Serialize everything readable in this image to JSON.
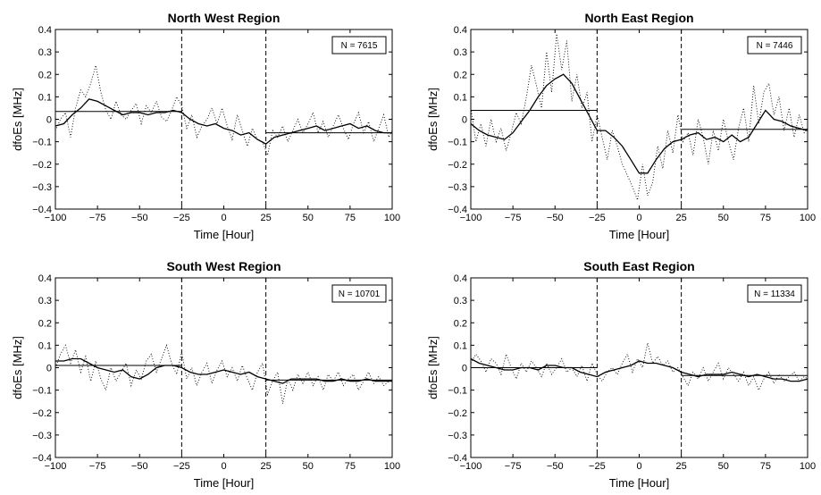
{
  "chart_data": [
    {
      "type": "line",
      "title": "North West Region",
      "xlabel": "Time [Hour]",
      "ylabel": "dfoEs [MHz]",
      "xlim": [
        -100,
        100
      ],
      "ylim": [
        -0.4,
        0.4
      ],
      "xticks": [
        "−100",
        "−75",
        "−50",
        "−25",
        "0",
        "25",
        "50",
        "75",
        "100"
      ],
      "yticks": [
        "0.4",
        "0.3",
        "0.2",
        "0.1",
        "0",
        "−0.1",
        "−0.2",
        "−0.3",
        "−0.4"
      ],
      "annotation": "N = 7615",
      "vlines": [
        -25,
        25
      ],
      "series": [
        {
          "style": "solid",
          "x": [
            -100,
            -95,
            -90,
            -85,
            -80,
            -75,
            -70,
            -65,
            -60,
            -55,
            -50,
            -45,
            -40,
            -35,
            -30,
            -25,
            -20,
            -15,
            -10,
            -5,
            0,
            5,
            10,
            15,
            20,
            25,
            30,
            35,
            40,
            45,
            50,
            55,
            60,
            65,
            70,
            75,
            80,
            85,
            90,
            95,
            100
          ],
          "y": [
            -0.03,
            -0.02,
            0.02,
            0.05,
            0.09,
            0.08,
            0.06,
            0.04,
            0.02,
            0.03,
            0.03,
            0.02,
            0.03,
            0.03,
            0.04,
            0.03,
            0.0,
            -0.02,
            -0.03,
            -0.02,
            -0.04,
            -0.05,
            -0.07,
            -0.06,
            -0.09,
            -0.11,
            -0.08,
            -0.07,
            -0.06,
            -0.05,
            -0.04,
            -0.03,
            -0.05,
            -0.04,
            -0.03,
            -0.02,
            -0.04,
            -0.03,
            -0.05,
            -0.06,
            -0.06
          ]
        },
        {
          "style": "dotted",
          "x": [
            -100,
            -97,
            -94,
            -91,
            -88,
            -85,
            -82,
            -79,
            -76,
            -73,
            -70,
            -67,
            -64,
            -61,
            -58,
            -55,
            -52,
            -49,
            -46,
            -43,
            -40,
            -37,
            -34,
            -31,
            -28,
            -25,
            -22,
            -19,
            -16,
            -13,
            -10,
            -7,
            -4,
            -1,
            2,
            5,
            8,
            11,
            14,
            17,
            20,
            23,
            26,
            29,
            32,
            35,
            38,
            41,
            44,
            47,
            50,
            53,
            56,
            59,
            62,
            65,
            68,
            71,
            74,
            77,
            80,
            83,
            86,
            89,
            92,
            95,
            98,
            100
          ],
          "y": [
            -0.05,
            0.0,
            0.03,
            -0.08,
            0.05,
            0.13,
            0.1,
            0.16,
            0.24,
            0.12,
            0.04,
            0.0,
            0.08,
            0.02,
            0.0,
            0.04,
            0.07,
            -0.02,
            0.06,
            0.03,
            0.08,
            0.01,
            -0.01,
            0.04,
            0.1,
            0.06,
            -0.04,
            0.02,
            -0.08,
            -0.03,
            0.0,
            0.05,
            -0.02,
            0.05,
            -0.03,
            -0.09,
            0.02,
            -0.05,
            -0.12,
            -0.04,
            -0.09,
            -0.1,
            -0.16,
            -0.05,
            -0.08,
            -0.03,
            -0.1,
            -0.05,
            0.0,
            -0.06,
            -0.02,
            0.03,
            -0.06,
            -0.01,
            -0.08,
            -0.03,
            0.02,
            -0.04,
            -0.09,
            -0.02,
            0.03,
            -0.06,
            -0.01,
            -0.1,
            -0.04,
            0.02,
            -0.08,
            -0.05
          ]
        }
      ],
      "means": [
        {
          "from": -100,
          "to": -25,
          "y": 0.035
        },
        {
          "from": 25,
          "to": 100,
          "y": -0.06
        }
      ]
    },
    {
      "type": "line",
      "title": "North East Region",
      "xlabel": "Time [Hour]",
      "ylabel": "dfoEs [MHz]",
      "xlim": [
        -100,
        100
      ],
      "ylim": [
        -0.4,
        0.4
      ],
      "xticks": [
        "−100",
        "−75",
        "−50",
        "−25",
        "0",
        "25",
        "50",
        "75",
        "100"
      ],
      "yticks": [
        "0.4",
        "0.3",
        "0.2",
        "0.1",
        "0",
        "−0.1",
        "−0.2",
        "−0.3",
        "−0.4"
      ],
      "annotation": "N = 7446",
      "vlines": [
        -25,
        25
      ],
      "series": [
        {
          "style": "solid",
          "x": [
            -100,
            -95,
            -90,
            -85,
            -80,
            -75,
            -70,
            -65,
            -60,
            -55,
            -50,
            -45,
            -40,
            -35,
            -30,
            -25,
            -20,
            -15,
            -10,
            -5,
            0,
            5,
            10,
            15,
            20,
            25,
            30,
            35,
            40,
            45,
            50,
            55,
            60,
            65,
            70,
            75,
            80,
            85,
            90,
            95,
            100
          ],
          "y": [
            -0.02,
            -0.05,
            -0.07,
            -0.08,
            -0.09,
            -0.06,
            -0.01,
            0.04,
            0.1,
            0.15,
            0.18,
            0.2,
            0.16,
            0.09,
            0.02,
            -0.05,
            -0.05,
            -0.08,
            -0.12,
            -0.18,
            -0.24,
            -0.24,
            -0.18,
            -0.13,
            -0.1,
            -0.09,
            -0.07,
            -0.06,
            -0.09,
            -0.08,
            -0.1,
            -0.07,
            -0.1,
            -0.08,
            -0.02,
            0.04,
            0.0,
            -0.01,
            -0.03,
            -0.04,
            -0.05
          ]
        },
        {
          "style": "dotted",
          "x": [
            -100,
            -97,
            -94,
            -91,
            -88,
            -85,
            -82,
            -79,
            -76,
            -73,
            -70,
            -67,
            -64,
            -61,
            -58,
            -55,
            -52,
            -49,
            -46,
            -43,
            -40,
            -37,
            -34,
            -31,
            -28,
            -25,
            -22,
            -19,
            -16,
            -13,
            -10,
            -7,
            -4,
            -1,
            2,
            5,
            8,
            11,
            14,
            17,
            20,
            23,
            26,
            29,
            32,
            35,
            38,
            41,
            44,
            47,
            50,
            53,
            56,
            59,
            62,
            65,
            68,
            71,
            74,
            77,
            80,
            83,
            86,
            89,
            92,
            95,
            98,
            100
          ],
          "y": [
            0.05,
            -0.1,
            -0.02,
            -0.12,
            0.0,
            -0.1,
            -0.04,
            -0.14,
            -0.06,
            0.03,
            -0.02,
            0.1,
            0.24,
            0.15,
            0.05,
            0.3,
            0.12,
            0.38,
            0.22,
            0.35,
            0.08,
            0.2,
            0.05,
            0.12,
            -0.1,
            0.02,
            -0.08,
            -0.18,
            -0.05,
            -0.12,
            -0.2,
            -0.25,
            -0.3,
            -0.36,
            -0.2,
            -0.34,
            -0.28,
            -0.12,
            -0.22,
            -0.05,
            -0.15,
            0.02,
            -0.1,
            -0.06,
            -0.16,
            0.0,
            -0.08,
            -0.2,
            -0.05,
            -0.14,
            0.0,
            -0.1,
            -0.18,
            -0.04,
            0.05,
            -0.1,
            0.15,
            -0.02,
            0.12,
            0.16,
            0.02,
            0.1,
            -0.05,
            0.05,
            -0.08,
            0.02,
            -0.06,
            -0.04
          ]
        }
      ],
      "means": [
        {
          "from": -100,
          "to": -25,
          "y": 0.04
        },
        {
          "from": 25,
          "to": 100,
          "y": -0.045
        }
      ]
    },
    {
      "type": "line",
      "title": "South West Region",
      "xlabel": "Time [Hour]",
      "ylabel": "dfoEs [MHz]",
      "xlim": [
        -100,
        100
      ],
      "ylim": [
        -0.4,
        0.4
      ],
      "xticks": [
        "−100",
        "−75",
        "−50",
        "−25",
        "0",
        "25",
        "50",
        "75",
        "100"
      ],
      "yticks": [
        "0.4",
        "0.3",
        "0.2",
        "0.1",
        "0",
        "−0.1",
        "−0.2",
        "−0.3",
        "−0.4"
      ],
      "annotation": "N = 10701",
      "vlines": [
        -25,
        25
      ],
      "series": [
        {
          "style": "solid",
          "x": [
            -100,
            -95,
            -90,
            -85,
            -80,
            -75,
            -70,
            -65,
            -60,
            -55,
            -50,
            -45,
            -40,
            -35,
            -30,
            -25,
            -20,
            -15,
            -10,
            -5,
            0,
            5,
            10,
            15,
            20,
            25,
            30,
            35,
            40,
            45,
            50,
            55,
            60,
            65,
            70,
            75,
            80,
            85,
            90,
            95,
            100
          ],
          "y": [
            0.03,
            0.03,
            0.04,
            0.04,
            0.02,
            0.0,
            -0.01,
            -0.02,
            -0.01,
            -0.04,
            -0.05,
            -0.03,
            0.0,
            0.01,
            0.01,
            0.0,
            -0.02,
            -0.03,
            -0.03,
            -0.02,
            -0.01,
            -0.02,
            -0.03,
            -0.02,
            -0.04,
            -0.05,
            -0.06,
            -0.07,
            -0.05,
            -0.05,
            -0.05,
            -0.05,
            -0.06,
            -0.06,
            -0.05,
            -0.06,
            -0.06,
            -0.05,
            -0.06,
            -0.06,
            -0.06
          ]
        },
        {
          "style": "dotted",
          "x": [
            -100,
            -97,
            -94,
            -91,
            -88,
            -85,
            -82,
            -79,
            -76,
            -73,
            -70,
            -67,
            -64,
            -61,
            -58,
            -55,
            -52,
            -49,
            -46,
            -43,
            -40,
            -37,
            -34,
            -31,
            -28,
            -25,
            -22,
            -19,
            -16,
            -13,
            -10,
            -7,
            -4,
            -1,
            2,
            5,
            8,
            11,
            14,
            17,
            20,
            23,
            26,
            29,
            32,
            35,
            38,
            41,
            44,
            47,
            50,
            53,
            56,
            59,
            62,
            65,
            68,
            71,
            74,
            77,
            80,
            83,
            86,
            89,
            92,
            95,
            98,
            100
          ],
          "y": [
            0.0,
            0.06,
            0.1,
            0.02,
            0.08,
            -0.02,
            0.05,
            -0.06,
            0.03,
            -0.05,
            -0.1,
            0.0,
            -0.06,
            -0.02,
            0.02,
            -0.08,
            -0.01,
            -0.05,
            0.03,
            0.06,
            -0.02,
            0.04,
            0.1,
            0.02,
            -0.03,
            0.07,
            -0.05,
            0.0,
            -0.08,
            -0.02,
            0.02,
            -0.07,
            -0.01,
            0.03,
            -0.04,
            0.0,
            -0.06,
            0.01,
            -0.05,
            -0.1,
            -0.02,
            0.02,
            -0.12,
            -0.06,
            -0.02,
            -0.16,
            -0.05,
            -0.1,
            -0.03,
            -0.07,
            -0.02,
            -0.08,
            -0.04,
            -0.1,
            -0.03,
            -0.06,
            -0.02,
            -0.08,
            -0.05,
            -0.03,
            -0.1,
            -0.06,
            -0.02,
            -0.07,
            -0.04,
            -0.08,
            -0.06,
            -0.05
          ]
        }
      ],
      "means": [
        {
          "from": -100,
          "to": -25,
          "y": 0.01
        },
        {
          "from": 25,
          "to": 100,
          "y": -0.055
        }
      ]
    },
    {
      "type": "line",
      "title": "South East Region",
      "xlabel": "Time [Hour]",
      "ylabel": "dfoEs [MHz]",
      "xlim": [
        -100,
        100
      ],
      "ylim": [
        -0.4,
        0.4
      ],
      "xticks": [
        "−100",
        "−75",
        "−50",
        "−25",
        "0",
        "25",
        "50",
        "75",
        "100"
      ],
      "yticks": [
        "0.4",
        "0.3",
        "0.2",
        "0.1",
        "0",
        "−0.1",
        "−0.2",
        "−0.3",
        "−0.4"
      ],
      "annotation": "N = 11334",
      "vlines": [
        -25,
        25
      ],
      "series": [
        {
          "style": "solid",
          "x": [
            -100,
            -95,
            -90,
            -85,
            -80,
            -75,
            -70,
            -65,
            -60,
            -55,
            -50,
            -45,
            -40,
            -35,
            -30,
            -25,
            -20,
            -15,
            -10,
            -5,
            0,
            5,
            10,
            15,
            20,
            25,
            30,
            35,
            40,
            45,
            50,
            55,
            60,
            65,
            70,
            75,
            80,
            85,
            90,
            95,
            100
          ],
          "y": [
            0.04,
            0.02,
            0.01,
            0.0,
            -0.01,
            -0.01,
            0.0,
            0.0,
            -0.01,
            0.01,
            0.01,
            0.0,
            0.0,
            -0.02,
            -0.03,
            -0.04,
            -0.02,
            -0.01,
            0.0,
            0.01,
            0.03,
            0.02,
            0.02,
            0.01,
            0.0,
            -0.02,
            -0.03,
            -0.04,
            -0.03,
            -0.03,
            -0.03,
            -0.02,
            -0.03,
            -0.04,
            -0.03,
            -0.04,
            -0.05,
            -0.05,
            -0.06,
            -0.06,
            -0.05
          ]
        },
        {
          "style": "dotted",
          "x": [
            -100,
            -97,
            -94,
            -91,
            -88,
            -85,
            -82,
            -79,
            -76,
            -73,
            -70,
            -67,
            -64,
            -61,
            -58,
            -55,
            -52,
            -49,
            -46,
            -43,
            -40,
            -37,
            -34,
            -31,
            -28,
            -25,
            -22,
            -19,
            -16,
            -13,
            -10,
            -7,
            -4,
            -1,
            2,
            5,
            8,
            11,
            14,
            17,
            20,
            23,
            26,
            29,
            32,
            35,
            38,
            41,
            44,
            47,
            50,
            53,
            56,
            59,
            62,
            65,
            68,
            71,
            74,
            77,
            80,
            83,
            86,
            89,
            92,
            95,
            98,
            100
          ],
          "y": [
            0.02,
            0.06,
            0.03,
            -0.02,
            0.04,
            0.02,
            -0.03,
            0.06,
            0.0,
            -0.05,
            0.02,
            -0.02,
            0.03,
            0.0,
            -0.04,
            0.02,
            -0.03,
            0.0,
            0.04,
            -0.02,
            0.0,
            -0.04,
            0.01,
            -0.06,
            0.02,
            -0.03,
            -0.06,
            -0.02,
            0.0,
            -0.03,
            0.02,
            0.06,
            -0.02,
            0.04,
            0.0,
            0.11,
            0.02,
            0.05,
            0.01,
            0.03,
            -0.02,
            0.0,
            -0.04,
            -0.08,
            -0.02,
            -0.05,
            0.0,
            -0.06,
            -0.02,
            0.02,
            -0.05,
            0.0,
            -0.03,
            -0.06,
            -0.02,
            -0.08,
            -0.04,
            -0.1,
            -0.05,
            -0.02,
            -0.07,
            -0.03,
            -0.06,
            -0.04,
            -0.02,
            -0.06,
            -0.04,
            -0.05
          ]
        }
      ],
      "means": [
        {
          "from": -100,
          "to": -25,
          "y": 0.0
        },
        {
          "from": 25,
          "to": 100,
          "y": -0.035
        }
      ]
    }
  ]
}
